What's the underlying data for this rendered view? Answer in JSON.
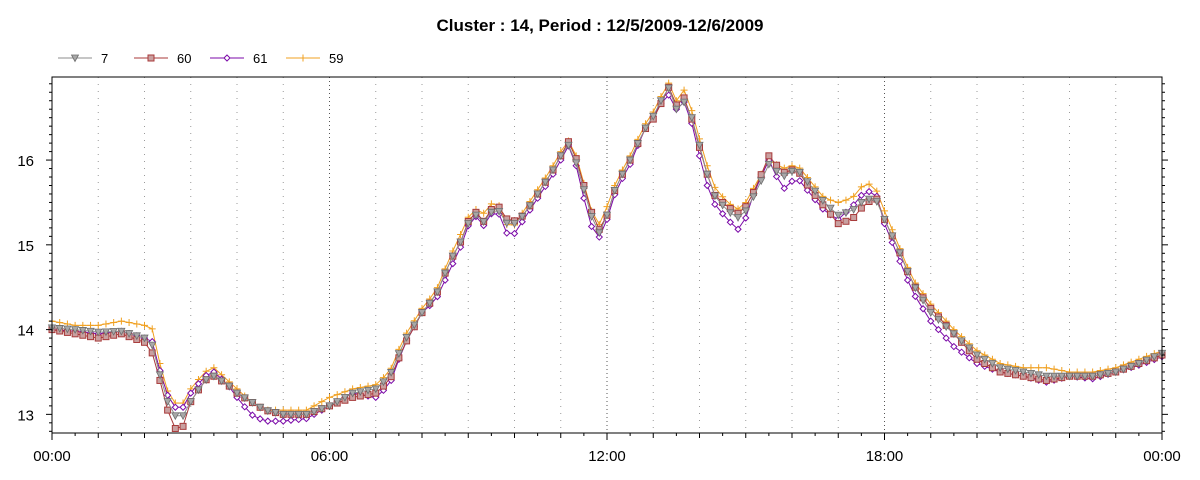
{
  "chart_data": {
    "type": "line",
    "title": "Cluster : 14, Period : 12/5/2009-12/6/2009",
    "xlabel": "",
    "ylabel": "",
    "x_tick_labels": [
      "00:00",
      "06:00",
      "12:00",
      "18:00",
      "00:00"
    ],
    "x_range_hours": [
      0,
      24
    ],
    "y_ticks": [
      13,
      14,
      15,
      16
    ],
    "ylim": [
      12.78,
      16.98
    ],
    "grid": "dotted vertical lines",
    "legend_position": "top-left",
    "series": [
      {
        "name": "7",
        "color": "#8c8c8c",
        "marker": "triangle-down",
        "points": [
          [
            0,
            14.02
          ],
          [
            0.5,
            14.0
          ],
          [
            1.0,
            13.97
          ],
          [
            1.5,
            13.98
          ],
          [
            2.0,
            13.9
          ],
          [
            2.2,
            13.8
          ],
          [
            2.4,
            13.3
          ],
          [
            2.6,
            13.0
          ],
          [
            2.8,
            12.95
          ],
          [
            3.0,
            13.15
          ],
          [
            3.3,
            13.4
          ],
          [
            3.5,
            13.45
          ],
          [
            3.8,
            13.35
          ],
          [
            4.0,
            13.25
          ],
          [
            4.3,
            13.15
          ],
          [
            4.6,
            13.05
          ],
          [
            5.0,
            13.0
          ],
          [
            5.5,
            13.0
          ],
          [
            6.0,
            13.1
          ],
          [
            6.5,
            13.25
          ],
          [
            7.0,
            13.3
          ],
          [
            7.3,
            13.45
          ],
          [
            7.6,
            13.85
          ],
          [
            8.0,
            14.2
          ],
          [
            8.3,
            14.4
          ],
          [
            8.6,
            14.8
          ],
          [
            8.9,
            15.1
          ],
          [
            9.1,
            15.4
          ],
          [
            9.3,
            15.25
          ],
          [
            9.6,
            15.45
          ],
          [
            9.9,
            15.2
          ],
          [
            10.2,
            15.35
          ],
          [
            10.5,
            15.6
          ],
          [
            10.8,
            15.85
          ],
          [
            11.0,
            16.05
          ],
          [
            11.2,
            16.2
          ],
          [
            11.4,
            15.85
          ],
          [
            11.6,
            15.45
          ],
          [
            11.8,
            15.1
          ],
          [
            12.0,
            15.35
          ],
          [
            12.2,
            15.7
          ],
          [
            12.5,
            16.0
          ],
          [
            12.8,
            16.35
          ],
          [
            13.1,
            16.6
          ],
          [
            13.3,
            16.9
          ],
          [
            13.5,
            16.6
          ],
          [
            13.7,
            16.7
          ],
          [
            13.9,
            16.4
          ],
          [
            14.1,
            15.95
          ],
          [
            14.3,
            15.6
          ],
          [
            14.6,
            15.4
          ],
          [
            14.9,
            15.3
          ],
          [
            15.2,
            15.6
          ],
          [
            15.5,
            15.95
          ],
          [
            15.8,
            15.8
          ],
          [
            16.1,
            15.9
          ],
          [
            16.4,
            15.7
          ],
          [
            16.7,
            15.5
          ],
          [
            17.0,
            15.35
          ],
          [
            17.3,
            15.4
          ],
          [
            17.6,
            15.55
          ],
          [
            17.9,
            15.5
          ],
          [
            18.0,
            15.3
          ],
          [
            18.3,
            14.95
          ],
          [
            18.6,
            14.55
          ],
          [
            19.0,
            14.2
          ],
          [
            19.5,
            13.95
          ],
          [
            20.0,
            13.7
          ],
          [
            20.5,
            13.55
          ],
          [
            21.0,
            13.5
          ],
          [
            21.5,
            13.45
          ],
          [
            22.0,
            13.45
          ],
          [
            22.5,
            13.45
          ],
          [
            23.0,
            13.5
          ],
          [
            23.5,
            13.6
          ],
          [
            24.0,
            13.72
          ]
        ]
      },
      {
        "name": "60",
        "color": "#a83a3a",
        "marker": "square",
        "points": [
          [
            0,
            14.0
          ],
          [
            0.5,
            13.95
          ],
          [
            1.0,
            13.9
          ],
          [
            1.5,
            13.95
          ],
          [
            2.0,
            13.85
          ],
          [
            2.2,
            13.7
          ],
          [
            2.4,
            13.25
          ],
          [
            2.6,
            12.85
          ],
          [
            2.8,
            12.8
          ],
          [
            3.0,
            13.15
          ],
          [
            3.3,
            13.4
          ],
          [
            3.5,
            13.45
          ],
          [
            3.8,
            13.35
          ],
          [
            4.0,
            13.25
          ],
          [
            4.3,
            13.15
          ],
          [
            4.6,
            13.05
          ],
          [
            5.0,
            13.0
          ],
          [
            5.5,
            13.0
          ],
          [
            6.0,
            13.1
          ],
          [
            6.5,
            13.2
          ],
          [
            7.0,
            13.25
          ],
          [
            7.3,
            13.4
          ],
          [
            7.6,
            13.8
          ],
          [
            8.0,
            14.2
          ],
          [
            8.3,
            14.4
          ],
          [
            8.6,
            14.8
          ],
          [
            8.9,
            15.1
          ],
          [
            9.1,
            15.45
          ],
          [
            9.3,
            15.25
          ],
          [
            9.6,
            15.5
          ],
          [
            9.9,
            15.25
          ],
          [
            10.2,
            15.35
          ],
          [
            10.5,
            15.6
          ],
          [
            10.8,
            15.85
          ],
          [
            11.0,
            16.05
          ],
          [
            11.2,
            16.25
          ],
          [
            11.4,
            15.9
          ],
          [
            11.6,
            15.5
          ],
          [
            11.8,
            15.15
          ],
          [
            12.0,
            15.35
          ],
          [
            12.2,
            15.7
          ],
          [
            12.5,
            16.0
          ],
          [
            12.8,
            16.35
          ],
          [
            13.1,
            16.55
          ],
          [
            13.3,
            16.9
          ],
          [
            13.5,
            16.65
          ],
          [
            13.7,
            16.75
          ],
          [
            13.9,
            16.35
          ],
          [
            14.1,
            15.95
          ],
          [
            14.3,
            15.6
          ],
          [
            14.6,
            15.45
          ],
          [
            14.9,
            15.35
          ],
          [
            15.2,
            15.65
          ],
          [
            15.5,
            16.05
          ],
          [
            15.8,
            15.85
          ],
          [
            16.1,
            15.9
          ],
          [
            16.4,
            15.65
          ],
          [
            16.7,
            15.45
          ],
          [
            17.0,
            15.25
          ],
          [
            17.3,
            15.3
          ],
          [
            17.6,
            15.5
          ],
          [
            17.9,
            15.55
          ],
          [
            18.0,
            15.3
          ],
          [
            18.3,
            14.95
          ],
          [
            18.6,
            14.55
          ],
          [
            19.0,
            14.25
          ],
          [
            19.5,
            13.95
          ],
          [
            20.0,
            13.65
          ],
          [
            20.5,
            13.5
          ],
          [
            21.0,
            13.45
          ],
          [
            21.5,
            13.4
          ],
          [
            22.0,
            13.45
          ],
          [
            22.5,
            13.45
          ],
          [
            23.0,
            13.5
          ],
          [
            23.5,
            13.6
          ],
          [
            24.0,
            13.7
          ]
        ]
      },
      {
        "name": "61",
        "color": "#7b0aa8",
        "marker": "diamond",
        "points": [
          [
            0,
            14.0
          ],
          [
            0.5,
            13.98
          ],
          [
            1.0,
            13.95
          ],
          [
            1.5,
            13.98
          ],
          [
            2.0,
            13.9
          ],
          [
            2.2,
            13.85
          ],
          [
            2.4,
            13.35
          ],
          [
            2.6,
            13.1
          ],
          [
            2.8,
            13.05
          ],
          [
            3.0,
            13.25
          ],
          [
            3.3,
            13.45
          ],
          [
            3.5,
            13.5
          ],
          [
            3.8,
            13.35
          ],
          [
            4.0,
            13.2
          ],
          [
            4.3,
            13.0
          ],
          [
            4.6,
            12.92
          ],
          [
            5.0,
            12.92
          ],
          [
            5.5,
            12.95
          ],
          [
            6.0,
            13.1
          ],
          [
            6.5,
            13.25
          ],
          [
            7.0,
            13.2
          ],
          [
            7.3,
            13.35
          ],
          [
            7.6,
            13.8
          ],
          [
            8.0,
            14.2
          ],
          [
            8.3,
            14.35
          ],
          [
            8.6,
            14.7
          ],
          [
            8.9,
            15.05
          ],
          [
            9.1,
            15.4
          ],
          [
            9.3,
            15.2
          ],
          [
            9.6,
            15.45
          ],
          [
            9.9,
            15.05
          ],
          [
            10.2,
            15.3
          ],
          [
            10.5,
            15.55
          ],
          [
            10.8,
            15.8
          ],
          [
            11.0,
            16.0
          ],
          [
            11.2,
            16.2
          ],
          [
            11.4,
            15.8
          ],
          [
            11.6,
            15.3
          ],
          [
            11.8,
            15.05
          ],
          [
            12.0,
            15.3
          ],
          [
            12.2,
            15.65
          ],
          [
            12.5,
            15.95
          ],
          [
            12.8,
            16.35
          ],
          [
            13.1,
            16.6
          ],
          [
            13.3,
            16.8
          ],
          [
            13.5,
            16.6
          ],
          [
            13.7,
            16.7
          ],
          [
            13.9,
            16.3
          ],
          [
            14.1,
            15.8
          ],
          [
            14.3,
            15.5
          ],
          [
            14.6,
            15.3
          ],
          [
            14.9,
            15.15
          ],
          [
            15.2,
            15.65
          ],
          [
            15.5,
            16.0
          ],
          [
            15.8,
            15.65
          ],
          [
            16.1,
            15.8
          ],
          [
            16.4,
            15.6
          ],
          [
            16.7,
            15.4
          ],
          [
            17.0,
            15.3
          ],
          [
            17.3,
            15.45
          ],
          [
            17.6,
            15.65
          ],
          [
            17.9,
            15.55
          ],
          [
            18.0,
            15.25
          ],
          [
            18.3,
            14.85
          ],
          [
            18.6,
            14.45
          ],
          [
            19.0,
            14.1
          ],
          [
            19.5,
            13.8
          ],
          [
            20.0,
            13.6
          ],
          [
            20.5,
            13.5
          ],
          [
            21.0,
            13.45
          ],
          [
            21.5,
            13.38
          ],
          [
            22.0,
            13.45
          ],
          [
            22.5,
            13.42
          ],
          [
            23.0,
            13.5
          ],
          [
            23.5,
            13.58
          ],
          [
            24.0,
            13.68
          ]
        ]
      },
      {
        "name": "59",
        "color": "#f0a020",
        "marker": "plus",
        "points": [
          [
            0,
            14.1
          ],
          [
            0.5,
            14.05
          ],
          [
            1.0,
            14.05
          ],
          [
            1.5,
            14.1
          ],
          [
            2.0,
            14.05
          ],
          [
            2.2,
            14.0
          ],
          [
            2.4,
            13.4
          ],
          [
            2.6,
            13.15
          ],
          [
            2.8,
            13.1
          ],
          [
            3.0,
            13.3
          ],
          [
            3.3,
            13.5
          ],
          [
            3.5,
            13.55
          ],
          [
            3.8,
            13.4
          ],
          [
            4.0,
            13.3
          ],
          [
            4.3,
            13.15
          ],
          [
            4.6,
            13.05
          ],
          [
            5.0,
            13.05
          ],
          [
            5.5,
            13.05
          ],
          [
            6.0,
            13.2
          ],
          [
            6.5,
            13.3
          ],
          [
            7.0,
            13.35
          ],
          [
            7.3,
            13.5
          ],
          [
            7.6,
            13.9
          ],
          [
            8.0,
            14.25
          ],
          [
            8.3,
            14.45
          ],
          [
            8.6,
            14.85
          ],
          [
            8.9,
            15.2
          ],
          [
            9.1,
            15.45
          ],
          [
            9.3,
            15.35
          ],
          [
            9.6,
            15.55
          ],
          [
            9.9,
            15.15
          ],
          [
            10.2,
            15.4
          ],
          [
            10.5,
            15.65
          ],
          [
            10.8,
            15.9
          ],
          [
            11.0,
            16.1
          ],
          [
            11.2,
            16.25
          ],
          [
            11.4,
            15.95
          ],
          [
            11.6,
            15.5
          ],
          [
            11.8,
            15.2
          ],
          [
            12.0,
            15.45
          ],
          [
            12.2,
            15.75
          ],
          [
            12.5,
            16.05
          ],
          [
            12.8,
            16.4
          ],
          [
            13.1,
            16.65
          ],
          [
            13.3,
            16.95
          ],
          [
            13.5,
            16.7
          ],
          [
            13.7,
            16.85
          ],
          [
            13.9,
            16.45
          ],
          [
            14.1,
            16.05
          ],
          [
            14.3,
            15.7
          ],
          [
            14.6,
            15.5
          ],
          [
            14.9,
            15.4
          ],
          [
            15.2,
            15.7
          ],
          [
            15.5,
            16.0
          ],
          [
            15.8,
            15.9
          ],
          [
            16.1,
            15.95
          ],
          [
            16.4,
            15.75
          ],
          [
            16.7,
            15.55
          ],
          [
            17.0,
            15.5
          ],
          [
            17.3,
            15.55
          ],
          [
            17.6,
            15.75
          ],
          [
            17.9,
            15.6
          ],
          [
            18.0,
            15.4
          ],
          [
            18.3,
            15.0
          ],
          [
            18.6,
            14.6
          ],
          [
            19.0,
            14.3
          ],
          [
            19.5,
            14.0
          ],
          [
            20.0,
            13.75
          ],
          [
            20.5,
            13.6
          ],
          [
            21.0,
            13.55
          ],
          [
            21.5,
            13.55
          ],
          [
            22.0,
            13.5
          ],
          [
            22.5,
            13.5
          ],
          [
            23.0,
            13.55
          ],
          [
            23.5,
            13.65
          ],
          [
            24.0,
            13.75
          ]
        ]
      }
    ]
  }
}
